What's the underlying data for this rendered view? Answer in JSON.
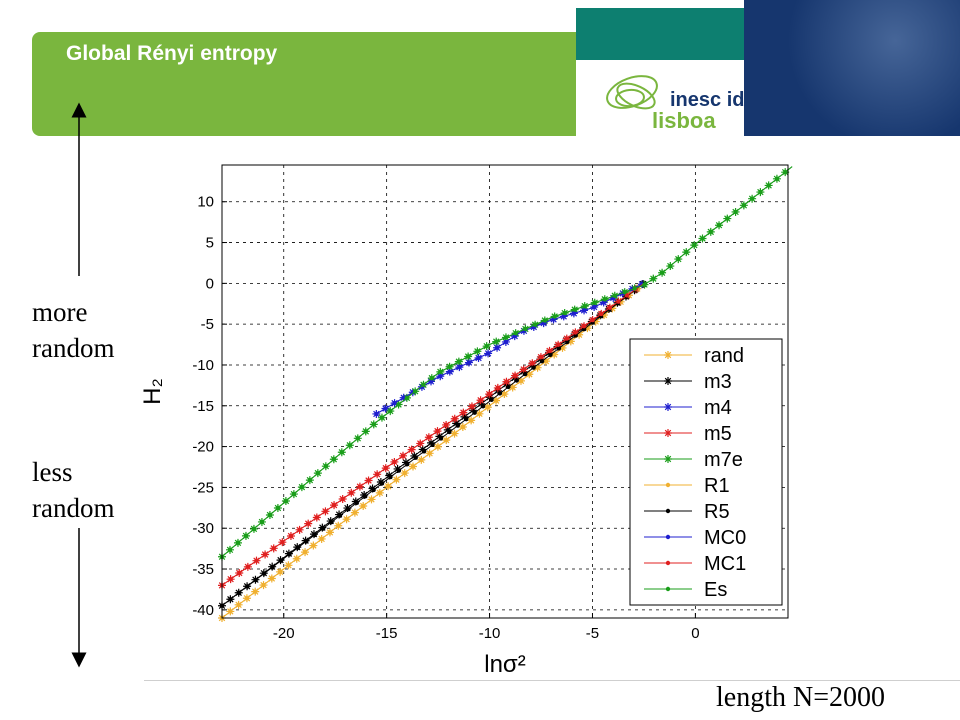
{
  "header": {
    "title": "Global Rényi entropy",
    "logo_line1": "inesc id",
    "logo_line2": "lisboa"
  },
  "annotations": {
    "more_line1": "more",
    "more_line2": "random",
    "less_line1": "less",
    "less_line2": "random"
  },
  "footer": {
    "note": "length N=2000"
  },
  "colors": {
    "header_green": "#7ab63e",
    "header_teal": "#0d7f70",
    "header_navy": "#16366e"
  },
  "chart_data": {
    "type": "line",
    "xlabel": "lnσ²",
    "ylabel": "H₂",
    "xlim": [
      -23,
      4.5
    ],
    "ylim": [
      -41,
      14.5
    ],
    "xticks": [
      -20,
      -15,
      -10,
      -5,
      0
    ],
    "yticks": [
      -40,
      -35,
      -30,
      -25,
      -20,
      -15,
      -10,
      -5,
      0,
      5,
      10
    ],
    "grid": true,
    "legend_position": "bottom-right",
    "series": [
      {
        "name": "rand",
        "color": "#f0b030",
        "marker": "star",
        "x": [
          -23,
          -2.5
        ],
        "y": [
          -41,
          0
        ]
      },
      {
        "name": "m3",
        "color": "#000000",
        "marker": "star",
        "x": [
          -23,
          -9,
          -2.5
        ],
        "y": [
          -39.5,
          -12,
          0
        ]
      },
      {
        "name": "m4",
        "color": "#1f1fcf",
        "marker": "star",
        "x": [
          -15.5,
          -12.5,
          -10,
          -8.5,
          -7,
          -5,
          -2.5
        ],
        "y": [
          -16,
          -11.5,
          -8.5,
          -6,
          -4.5,
          -3,
          0
        ]
      },
      {
        "name": "m5",
        "color": "#e02020",
        "marker": "star",
        "x": [
          -23,
          -2.5
        ],
        "y": [
          -37,
          0
        ]
      },
      {
        "name": "m7e",
        "color": "#1a9e1a",
        "marker": "star",
        "x": [
          -23,
          -15.5,
          -12.5,
          -10,
          -7,
          -4,
          -2.5,
          -1.5,
          0,
          4.7
        ],
        "y": [
          -33.5,
          -17,
          -11,
          -7.5,
          -4.2,
          -1.6,
          -0.2,
          1.5,
          4.8,
          14.3
        ]
      },
      {
        "name": "R1",
        "color": "#f0b030",
        "marker": "dot",
        "x": [
          -23,
          -2.5
        ],
        "y": [
          -41,
          0
        ]
      },
      {
        "name": "R5",
        "color": "#000000",
        "marker": "dot",
        "x": [
          -23,
          -2.5
        ],
        "y": [
          -39.5,
          0
        ]
      },
      {
        "name": "MC0",
        "color": "#1f1fcf",
        "marker": "dot",
        "x": [
          -15.5,
          -12.5,
          -10,
          -8.5,
          -7,
          -5,
          -2.5
        ],
        "y": [
          -16,
          -11.5,
          -8.5,
          -6,
          -4.5,
          -3,
          0
        ]
      },
      {
        "name": "MC1",
        "color": "#e02020",
        "marker": "dot",
        "x": [
          -23,
          -2.5
        ],
        "y": [
          -37,
          0
        ]
      },
      {
        "name": "Es",
        "color": "#1a9e1a",
        "marker": "dot",
        "x": [
          -23,
          -15.5,
          -12.5,
          -10,
          -7,
          -4,
          -2.5,
          -1.5,
          0,
          4.7
        ],
        "y": [
          -33.5,
          -17,
          -11,
          -7.5,
          -4.2,
          -1.6,
          -0.2,
          1.5,
          4.8,
          14.3
        ]
      }
    ]
  }
}
